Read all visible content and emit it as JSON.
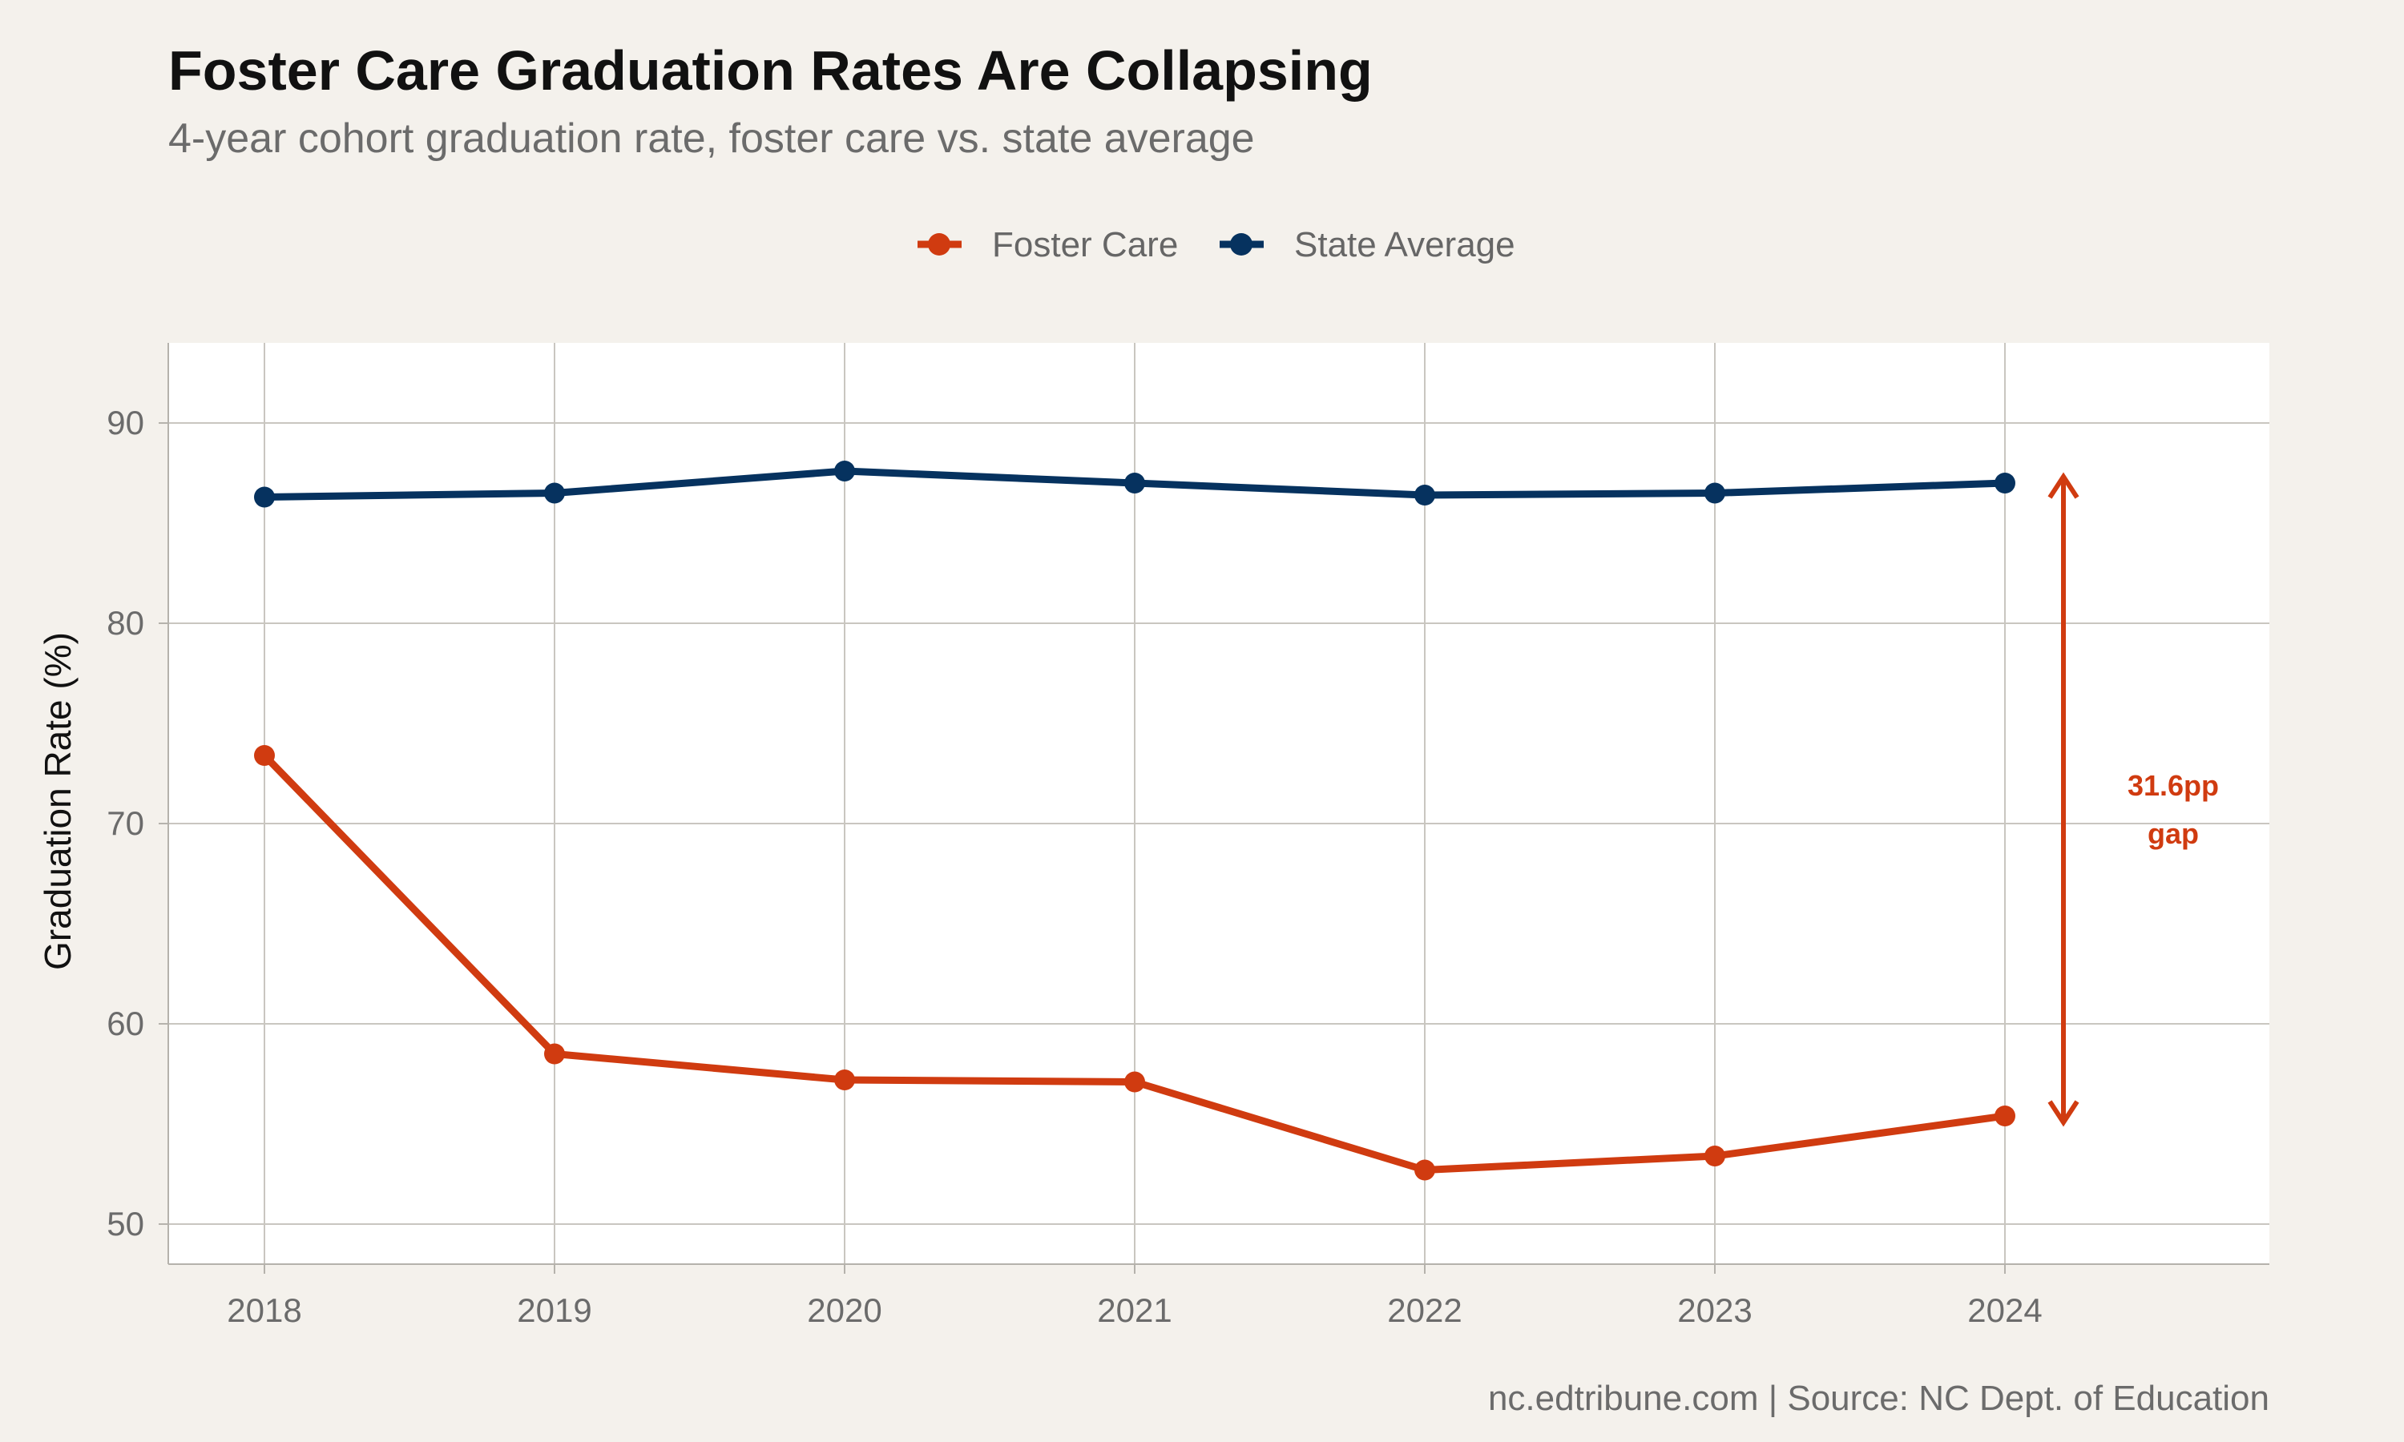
{
  "chart_data": {
    "type": "line",
    "title": "Foster Care Graduation Rates Are Collapsing",
    "subtitle": "4-year cohort graduation rate, foster care vs. state average",
    "x": [
      "2018",
      "2019",
      "2020",
      "2021",
      "2022",
      "2023",
      "2024"
    ],
    "xlabel": "",
    "ylabel": "Graduation Rate (%)",
    "ylim": [
      48,
      94
    ],
    "yticks": [
      50,
      60,
      70,
      80,
      90
    ],
    "grid": true,
    "legend_position": "top",
    "series": [
      {
        "name": "Foster Care",
        "color": "#d03b10",
        "values": [
          73.4,
          58.5,
          57.2,
          57.1,
          52.7,
          53.4,
          55.4
        ]
      },
      {
        "name": "State Average",
        "color": "#06325f",
        "values": [
          86.3,
          86.5,
          87.6,
          87.0,
          86.4,
          86.5,
          87.0
        ]
      }
    ],
    "annotation": {
      "line1": "31.6pp",
      "line2": "gap",
      "color": "#d03b10",
      "from_value": 55.4,
      "to_value": 87.0
    },
    "caption": "nc.edtribune.com | Source: NC Dept. of Education"
  }
}
